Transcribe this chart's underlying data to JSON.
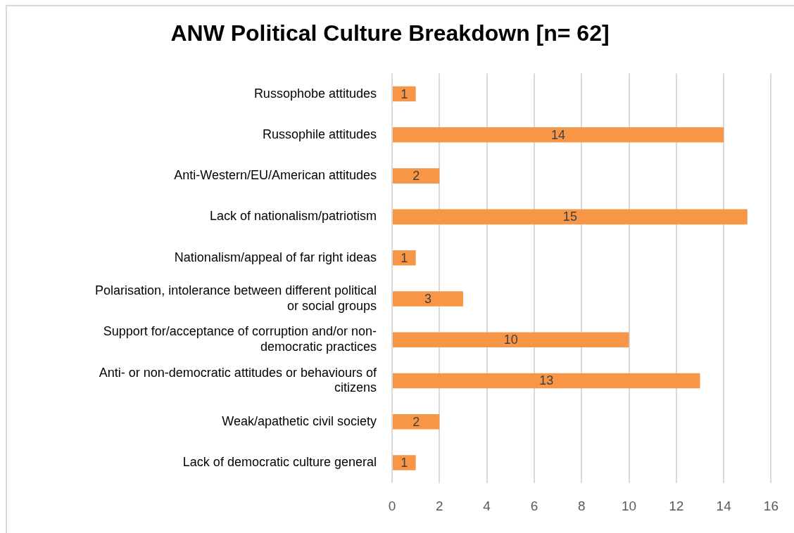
{
  "chart_data": {
    "type": "bar",
    "orientation": "horizontal",
    "title": "ANW Political Culture Breakdown [n= 62]",
    "categories": [
      "Russophobe attitudes",
      "Russophile attitudes",
      "Anti-Western/EU/American attitudes",
      "Lack of nationalism/patriotism",
      "Nationalism/appeal of far right ideas",
      "Polarisation, intolerance between different political or social groups",
      "Support for/acceptance of corruption and/or non-democratic practices",
      "Anti- or non-democratic attitudes or behaviours of citizens",
      "Weak/apathetic civil society",
      "Lack of democratic culture general"
    ],
    "values": [
      1,
      14,
      2,
      15,
      1,
      3,
      10,
      13,
      2,
      1
    ],
    "color": "#f79646",
    "xlim": [
      0,
      16
    ],
    "xticks": [
      0,
      2,
      4,
      6,
      8,
      10,
      12,
      14,
      16
    ],
    "grid": "x",
    "data_labels": true
  }
}
